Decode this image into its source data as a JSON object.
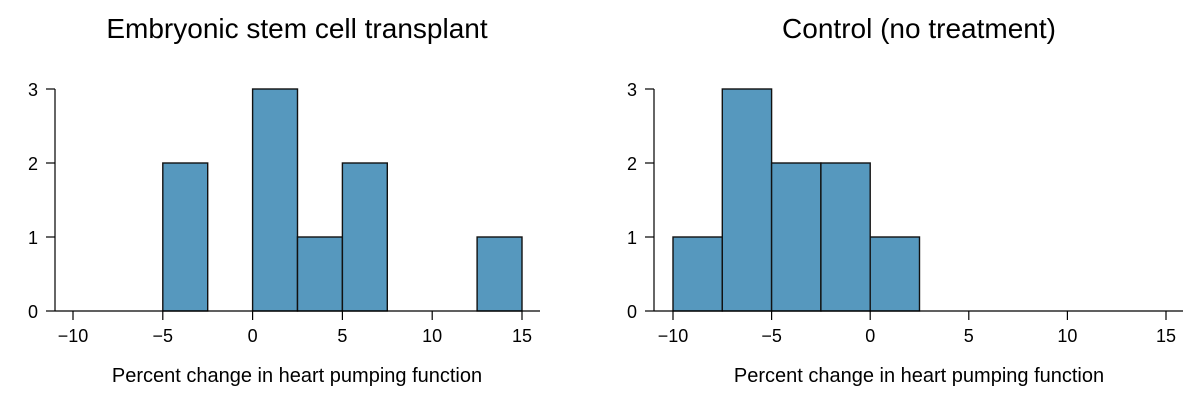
{
  "chart_data": [
    {
      "type": "bar",
      "title": "Embryonic stem cell transplant",
      "xlabel": "Percent change in heart pumping function",
      "ylabel": "",
      "bin_width": 2.5,
      "bins": [
        {
          "start": -5,
          "end": -2.5,
          "count": 2
        },
        {
          "start": 0,
          "end": 2.5,
          "count": 3
        },
        {
          "start": 2.5,
          "end": 5,
          "count": 1
        },
        {
          "start": 5,
          "end": 7.5,
          "count": 2
        },
        {
          "start": 12.5,
          "end": 15,
          "count": 1
        }
      ],
      "xlim": [
        -10,
        15
      ],
      "ylim": [
        0,
        3
      ],
      "xticks": [
        -10,
        -5,
        0,
        5,
        10,
        15
      ],
      "xtick_labels": [
        "−10",
        "−5",
        "0",
        "5",
        "10",
        "15"
      ],
      "yticks": [
        0,
        1,
        2,
        3
      ],
      "ytick_labels": [
        "0",
        "1",
        "2",
        "3"
      ],
      "bar_color": "#5698be",
      "grid": false
    },
    {
      "type": "bar",
      "title": "Control (no treatment)",
      "xlabel": "Percent change in heart pumping function",
      "ylabel": "",
      "bin_width": 2.5,
      "bins": [
        {
          "start": -10,
          "end": -7.5,
          "count": 1
        },
        {
          "start": -7.5,
          "end": -5,
          "count": 3
        },
        {
          "start": -5,
          "end": -2.5,
          "count": 2
        },
        {
          "start": -2.5,
          "end": 0,
          "count": 2
        },
        {
          "start": 0,
          "end": 2.5,
          "count": 1
        }
      ],
      "xlim": [
        -10,
        15
      ],
      "ylim": [
        0,
        3
      ],
      "xticks": [
        -10,
        -5,
        0,
        5,
        10,
        15
      ],
      "xtick_labels": [
        "−10",
        "−5",
        "0",
        "5",
        "10",
        "15"
      ],
      "yticks": [
        0,
        1,
        2,
        3
      ],
      "ytick_labels": [
        "0",
        "1",
        "2",
        "3"
      ],
      "bar_color": "#5698be",
      "grid": false
    }
  ]
}
